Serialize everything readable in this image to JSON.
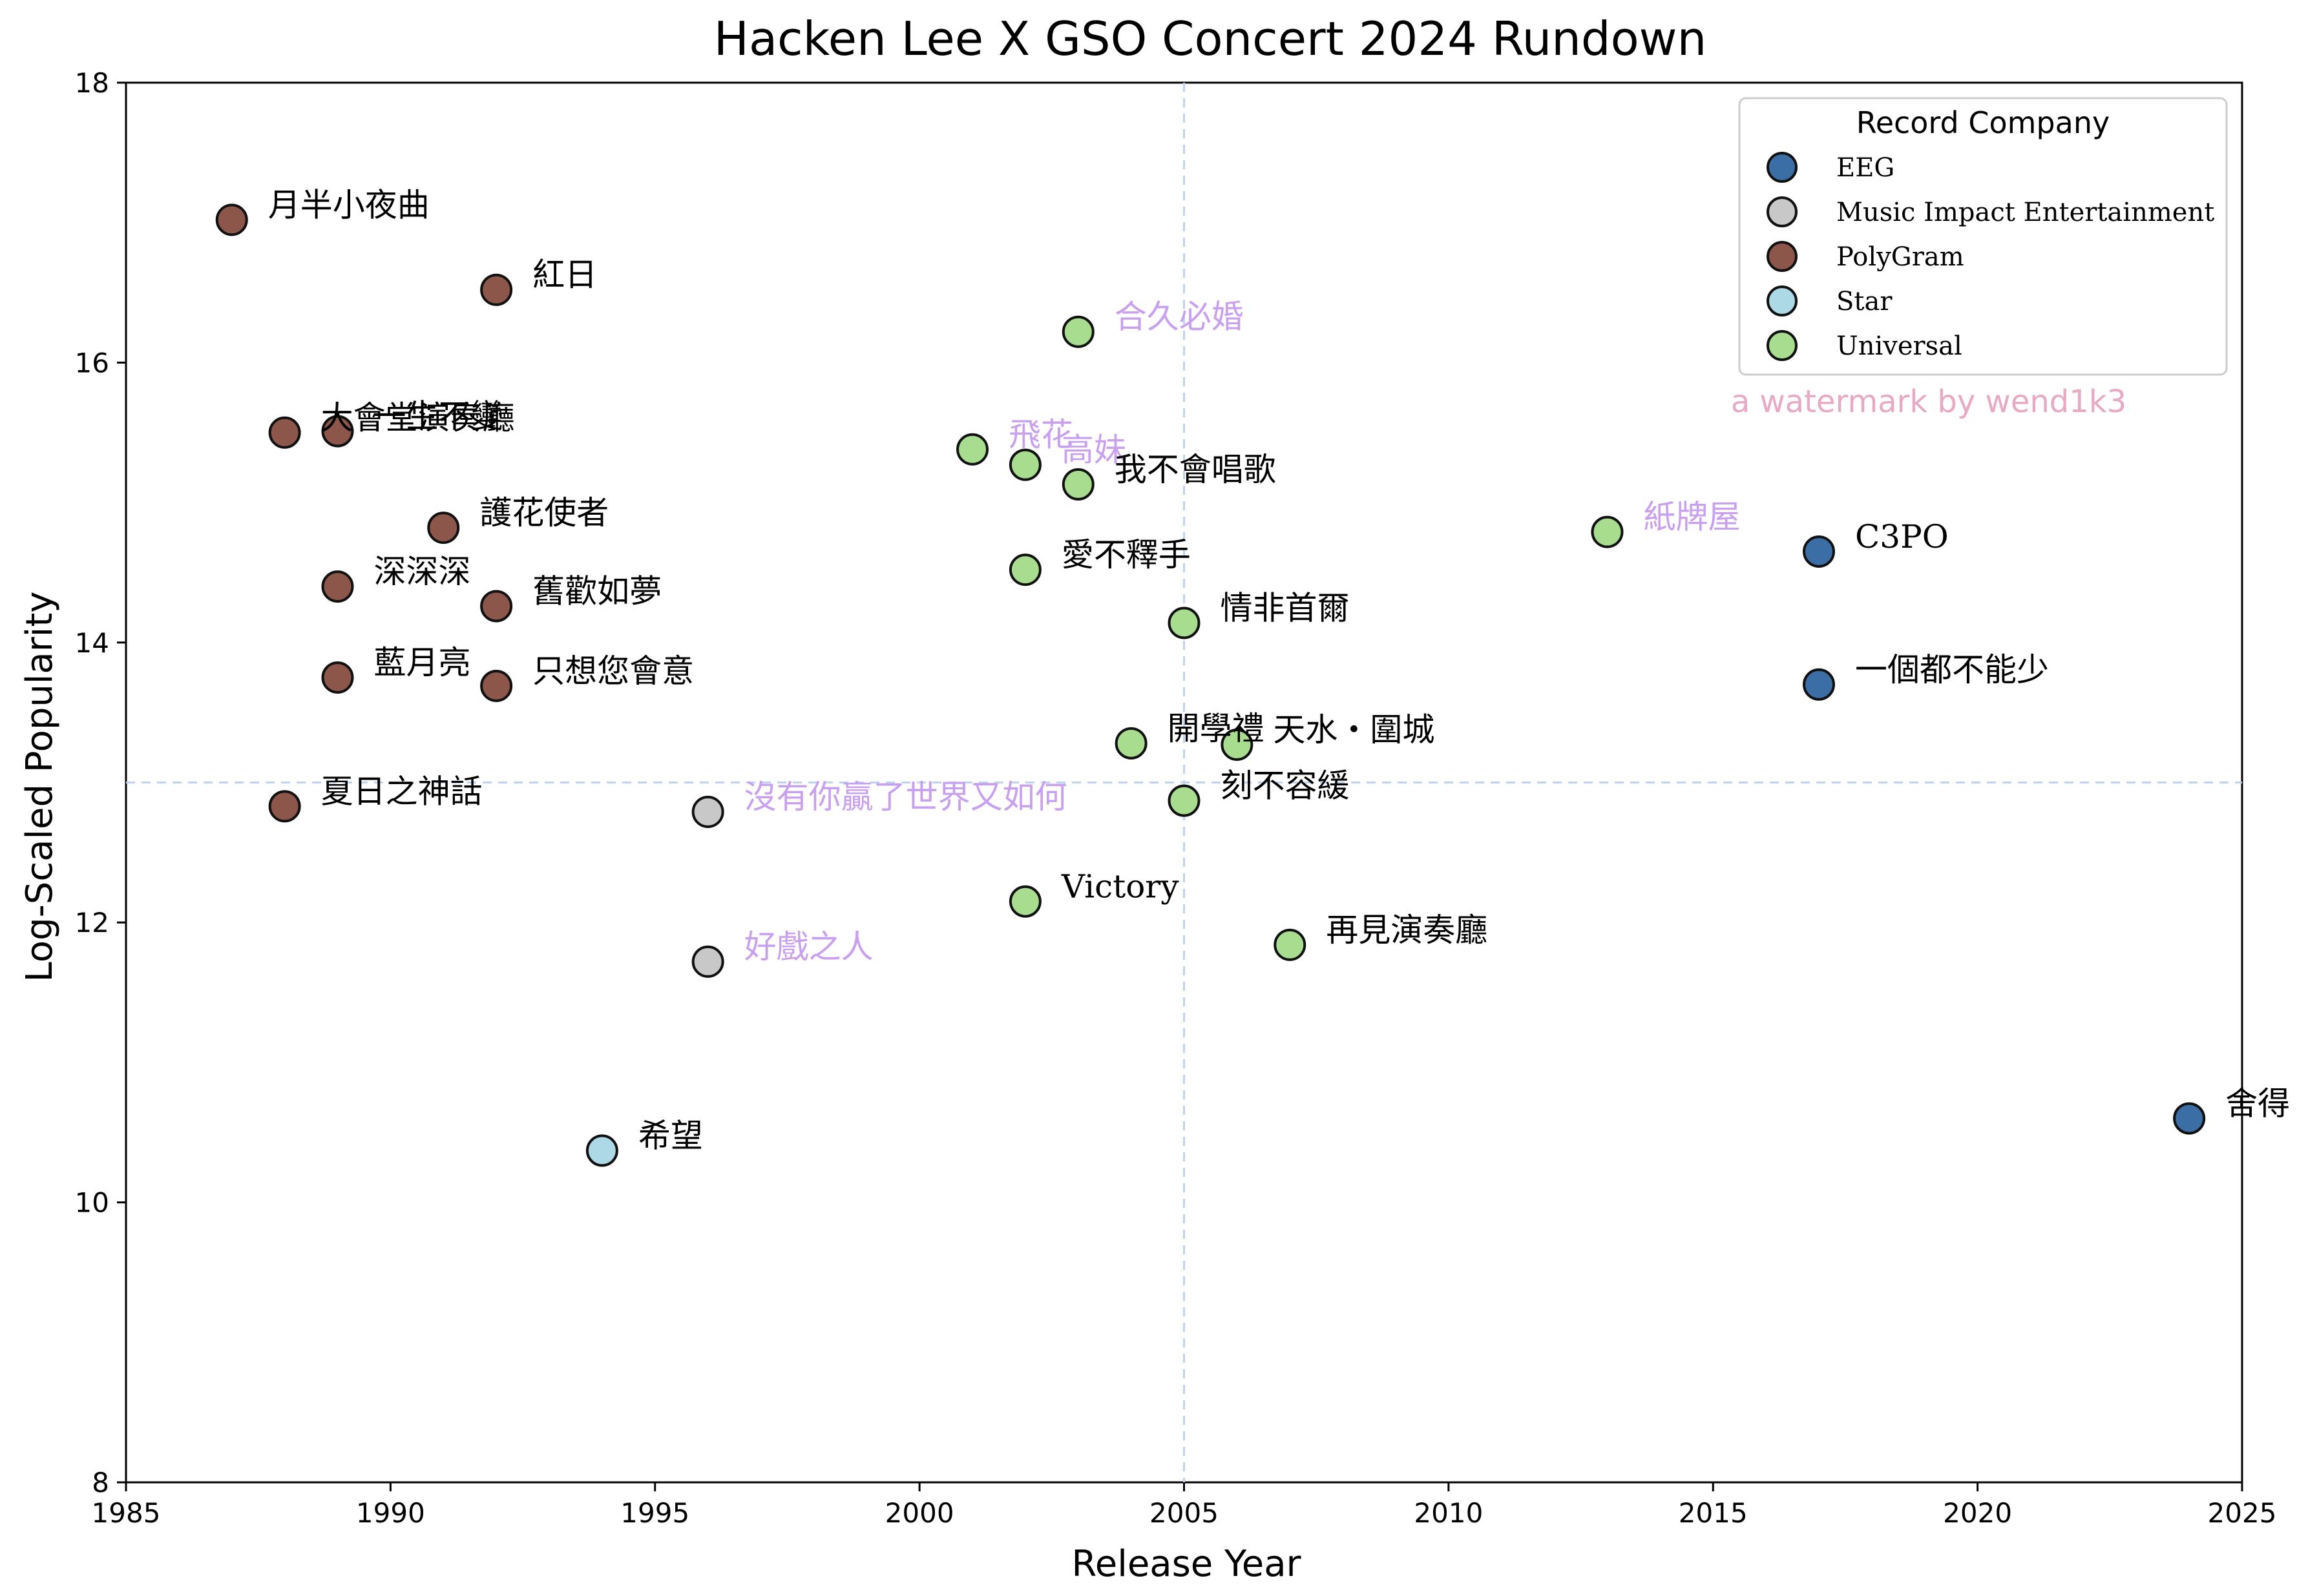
{
  "chart_data": {
    "type": "scatter",
    "title": "Hacken Lee X GSO Concert 2024 Rundown",
    "xlabel": "Release Year",
    "ylabel": "Log-Scaled Popularity",
    "xlim": [
      1985,
      2025
    ],
    "ylim": [
      8,
      18
    ],
    "xticks": [
      1985,
      1990,
      1995,
      2000,
      2005,
      2010,
      2015,
      2020,
      2025
    ],
    "yticks": [
      8,
      10,
      12,
      14,
      16,
      18
    ],
    "grid": false,
    "reference_lines": {
      "x": 2005,
      "y": 13.0
    },
    "legend": {
      "title": "Record Company",
      "placement": "top-right",
      "entries": [
        {
          "name": "EEG",
          "color": "#3a6ea5"
        },
        {
          "name": "Music Impact Entertainment",
          "color": "#c8c8c8"
        },
        {
          "name": "PolyGram",
          "color": "#8c564b"
        },
        {
          "name": "Star",
          "color": "#add8e6"
        },
        {
          "name": "Universal",
          "color": "#a8dc8f"
        }
      ]
    },
    "annotation_colors": {
      "default": "#000000",
      "highlight": "#c9a0f0"
    },
    "watermark": "a watermark by wend1k3",
    "points": [
      {
        "label": "月半小夜曲",
        "x": 1987,
        "y": 17.02,
        "company": "PolyGram",
        "highlight": false
      },
      {
        "label": "紅日",
        "x": 1992,
        "y": 16.52,
        "company": "PolyGram",
        "highlight": false
      },
      {
        "label": "大會堂演奏廳",
        "x": 1988,
        "y": 15.5,
        "company": "PolyGram",
        "highlight": false
      },
      {
        "label": "一生不變",
        "x": 1989,
        "y": 15.51,
        "company": "PolyGram",
        "highlight": false
      },
      {
        "label": "護花使者",
        "x": 1991,
        "y": 14.82,
        "company": "PolyGram",
        "highlight": false
      },
      {
        "label": "深深深",
        "x": 1989,
        "y": 14.4,
        "company": "PolyGram",
        "highlight": false
      },
      {
        "label": "舊歡如夢",
        "x": 1992,
        "y": 14.26,
        "company": "PolyGram",
        "highlight": false
      },
      {
        "label": "藍月亮",
        "x": 1989,
        "y": 13.75,
        "company": "PolyGram",
        "highlight": false
      },
      {
        "label": "只想您會意",
        "x": 1992,
        "y": 13.69,
        "company": "PolyGram",
        "highlight": false
      },
      {
        "label": "夏日之神話",
        "x": 1988,
        "y": 12.83,
        "company": "PolyGram",
        "highlight": false
      },
      {
        "label": "沒有你贏了世界又如何",
        "x": 1996,
        "y": 12.79,
        "company": "Music Impact Entertainment",
        "highlight": true
      },
      {
        "label": "好戲之人",
        "x": 1996,
        "y": 11.72,
        "company": "Music Impact Entertainment",
        "highlight": true
      },
      {
        "label": "希望",
        "x": 1994,
        "y": 10.37,
        "company": "Star",
        "highlight": false
      },
      {
        "label": "合久必婚",
        "x": 2003,
        "y": 16.22,
        "company": "Universal",
        "highlight": true
      },
      {
        "label": "飛花",
        "x": 2001,
        "y": 15.38,
        "company": "Universal",
        "highlight": true
      },
      {
        "label": "高妹",
        "x": 2002,
        "y": 15.27,
        "company": "Universal",
        "highlight": true
      },
      {
        "label": "我不會唱歌",
        "x": 2003,
        "y": 15.13,
        "company": "Universal",
        "highlight": false
      },
      {
        "label": "愛不釋手",
        "x": 2002,
        "y": 14.52,
        "company": "Universal",
        "highlight": false
      },
      {
        "label": "情非首爾",
        "x": 2005,
        "y": 14.14,
        "company": "Universal",
        "highlight": false
      },
      {
        "label": "開學禮",
        "x": 2004,
        "y": 13.28,
        "company": "Universal",
        "highlight": false
      },
      {
        "label": "天水・圍城",
        "x": 2006,
        "y": 13.27,
        "company": "Universal",
        "highlight": false
      },
      {
        "label": "刻不容緩",
        "x": 2005,
        "y": 12.87,
        "company": "Universal",
        "highlight": false
      },
      {
        "label": "Victory",
        "x": 2002,
        "y": 12.15,
        "company": "Universal",
        "highlight": false
      },
      {
        "label": "再見演奏廳",
        "x": 2007,
        "y": 11.84,
        "company": "Universal",
        "highlight": false
      },
      {
        "label": "紙牌屋",
        "x": 2013,
        "y": 14.79,
        "company": "Universal",
        "highlight": true
      },
      {
        "label": "C3PO",
        "x": 2017,
        "y": 14.65,
        "company": "EEG",
        "highlight": false
      },
      {
        "label": "一個都不能少",
        "x": 2017,
        "y": 13.7,
        "company": "EEG",
        "highlight": false
      },
      {
        "label": "舍得",
        "x": 2024,
        "y": 10.6,
        "company": "EEG",
        "highlight": false
      }
    ]
  }
}
